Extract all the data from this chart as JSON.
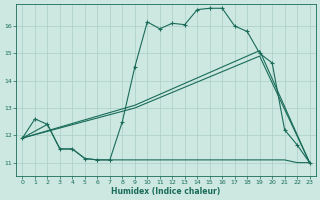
{
  "bg_color": "#cce8e0",
  "grid_color": "#aacfc8",
  "line_color": "#1a6b5a",
  "xlabel": "Humidex (Indice chaleur)",
  "ylim": [
    10.5,
    16.8
  ],
  "xlim": [
    -0.5,
    23.5
  ],
  "yticks": [
    11,
    12,
    13,
    14,
    15,
    16
  ],
  "xticks": [
    0,
    1,
    2,
    3,
    4,
    5,
    6,
    7,
    8,
    9,
    10,
    11,
    12,
    13,
    14,
    15,
    16,
    17,
    18,
    19,
    20,
    21,
    22,
    23
  ],
  "curve1_x": [
    0,
    1,
    2,
    3,
    4,
    5,
    6,
    7,
    8,
    9,
    10,
    11,
    12,
    13,
    14,
    15,
    16,
    17,
    18,
    19,
    20,
    21,
    22,
    23
  ],
  "curve1_y": [
    11.9,
    12.6,
    12.4,
    11.5,
    11.5,
    11.15,
    11.1,
    11.1,
    12.5,
    14.5,
    16.15,
    15.9,
    16.1,
    16.05,
    16.6,
    16.65,
    16.65,
    16.0,
    15.8,
    15.0,
    14.65,
    12.2,
    11.65,
    11.0
  ],
  "curve2_x": [
    0,
    9,
    19,
    23
  ],
  "curve2_y": [
    11.9,
    13.0,
    14.9,
    11.0
  ],
  "curve3_x": [
    0,
    9,
    19,
    23
  ],
  "curve3_y": [
    11.9,
    13.1,
    15.1,
    11.0
  ],
  "curve4_x": [
    0,
    1,
    2,
    3,
    4,
    5,
    6,
    7,
    8,
    9,
    10,
    11,
    12,
    13,
    14,
    15,
    16,
    17,
    18,
    19,
    20,
    21,
    22,
    23
  ],
  "curve4_y": [
    11.9,
    12.15,
    12.4,
    11.5,
    11.5,
    11.15,
    11.1,
    11.1,
    11.1,
    11.1,
    11.1,
    11.1,
    11.1,
    11.1,
    11.1,
    11.1,
    11.1,
    11.1,
    11.1,
    11.1,
    11.1,
    11.1,
    11.0,
    11.0
  ]
}
